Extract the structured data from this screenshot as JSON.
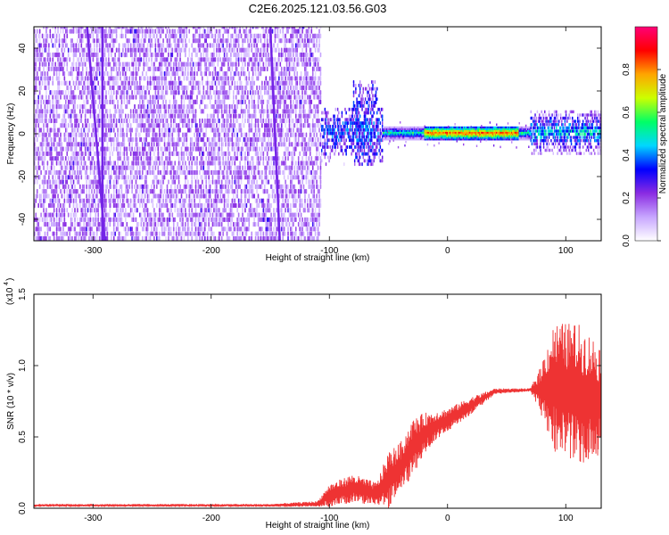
{
  "title": "C2E6.2025.121.03.56.G03",
  "chart_data": [
    {
      "type": "heatmap",
      "xlabel": "Height of straight line (km)",
      "ylabel": "Frequency (Hz)",
      "xlim": [
        -350,
        130
      ],
      "ylim": [
        -50,
        50
      ],
      "xticks": [
        -300,
        -200,
        -100,
        0,
        100
      ],
      "yticks": [
        -40,
        -20,
        0,
        20,
        40
      ],
      "colorbar": {
        "label": "Normalized spectral amplitude",
        "range": [
          0,
          1
        ],
        "ticks": [
          "0.0",
          "0.2",
          "0.4",
          "0.6",
          "0.8"
        ],
        "colormap": [
          "#ffffff",
          "#c7a6ff",
          "#8a2be2",
          "#0000ff",
          "#00d7ff",
          "#00ff66",
          "#ccff00",
          "#ffa500",
          "#ff0000",
          "#ff0077"
        ]
      },
      "regions": [
        {
          "x_range": [
            -350,
            -107
          ],
          "freq_range": [
            -50,
            50
          ],
          "amplitude": "0.0-0.2 (broadband noise)"
        },
        {
          "x_range": [
            -107,
            -55
          ],
          "freq_range": [
            -15,
            25
          ],
          "amplitude": "0.2-0.4"
        },
        {
          "x_range": [
            -55,
            70
          ],
          "freq_range": [
            -3,
            3
          ],
          "amplitude": "0.6-1.0 (narrow tone near 0 Hz)"
        },
        {
          "x_range": [
            70,
            130
          ],
          "freq_range": [
            -10,
            10
          ],
          "amplitude": "0.2-0.5"
        }
      ],
      "streaks": [
        {
          "x_at_top": -305,
          "x_at_bottom": -290
        },
        {
          "x_at_top": -292,
          "x_at_bottom": -292
        },
        {
          "x_at_top": -150,
          "x_at_bottom": -142
        }
      ]
    },
    {
      "type": "line",
      "xlabel": "Height of straight line (km)",
      "ylabel": "SNR (10 * v/v)",
      "scale_note": "(x10",
      "scale_exp": "4",
      "xlim": [
        -350,
        130
      ],
      "ylim": [
        0,
        1.5
      ],
      "xticks": [
        -300,
        -200,
        -100,
        0,
        100
      ],
      "yticks": [
        "0.0",
        "0.5",
        "1.0",
        "1.5"
      ],
      "color": "#ee3333",
      "envelope": [
        {
          "x": -350,
          "mean": 0.02,
          "spread": 0.01
        },
        {
          "x": -150,
          "mean": 0.02,
          "spread": 0.01
        },
        {
          "x": -110,
          "mean": 0.03,
          "spread": 0.02
        },
        {
          "x": -100,
          "mean": 0.09,
          "spread": 0.08
        },
        {
          "x": -80,
          "mean": 0.14,
          "spread": 0.1
        },
        {
          "x": -60,
          "mean": 0.1,
          "spread": 0.08
        },
        {
          "x": -50,
          "mean": 0.2,
          "spread": 0.2
        },
        {
          "x": -40,
          "mean": 0.28,
          "spread": 0.18
        },
        {
          "x": -30,
          "mean": 0.42,
          "spread": 0.2
        },
        {
          "x": -20,
          "mean": 0.52,
          "spread": 0.15
        },
        {
          "x": -10,
          "mean": 0.58,
          "spread": 0.1
        },
        {
          "x": 0,
          "mean": 0.62,
          "spread": 0.08
        },
        {
          "x": 20,
          "mean": 0.72,
          "spread": 0.06
        },
        {
          "x": 40,
          "mean": 0.82,
          "spread": 0.02
        },
        {
          "x": 70,
          "mean": 0.83,
          "spread": 0.01
        },
        {
          "x": 78,
          "mean": 0.83,
          "spread": 0.15
        },
        {
          "x": 90,
          "mean": 0.85,
          "spread": 0.45
        },
        {
          "x": 110,
          "mean": 0.8,
          "spread": 0.5
        },
        {
          "x": 130,
          "mean": 0.75,
          "spread": 0.4
        }
      ]
    }
  ]
}
